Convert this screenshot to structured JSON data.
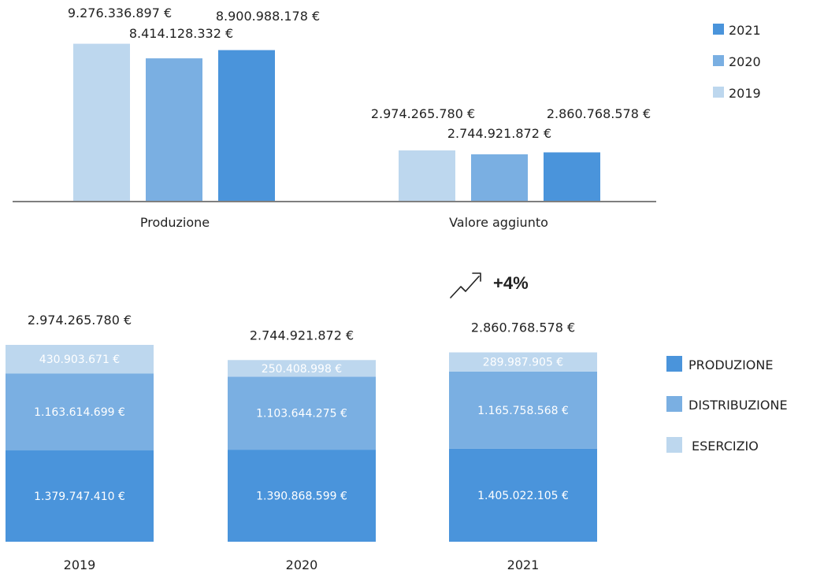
{
  "chart_data": [
    {
      "type": "bar",
      "categories": [
        "Produzione",
        "Valore aggiunto"
      ],
      "series": [
        {
          "name": "2019",
          "color": "#bdd7ee",
          "values": [
            9276336897,
            2974265780
          ],
          "labels": [
            "9.276.336.897 €",
            "2.974.265.780 €"
          ]
        },
        {
          "name": "2020",
          "color": "#7aafe2",
          "values": [
            8414128332,
            2744921872
          ],
          "labels": [
            "8.414.128.332 €",
            "2.744.921.872 €"
          ]
        },
        {
          "name": "2021",
          "color": "#4a94db",
          "values": [
            8900988178,
            2860768578
          ],
          "labels": [
            "8.900.988.178 €",
            "2.860.768.578 €"
          ]
        }
      ],
      "legend_order": [
        "2021",
        "2020",
        "2019"
      ],
      "legend_position": "top-right",
      "ylim": [
        0,
        10000000000
      ],
      "grid": false
    },
    {
      "type": "bar",
      "stacked": true,
      "categories": [
        "2019",
        "2020",
        "2021"
      ],
      "totals": [
        2974265780,
        2744921872,
        2860768578
      ],
      "total_labels": [
        "2.974.265.780 €",
        "2.744.921.872 €",
        "2.860.768.578 €"
      ],
      "series": [
        {
          "name": "PRODUZIONE",
          "color": "#4a94db",
          "values": [
            1379747410,
            1390868599,
            1405022105
          ],
          "labels": [
            "1.379.747.410 €",
            "1.390.868.599 €",
            "1.405.022.105 €"
          ]
        },
        {
          "name": "DISTRIBUZIONE",
          "color": "#7aafe2",
          "values": [
            1163614699,
            1103644275,
            1165758568
          ],
          "labels": [
            "1.163.614.699 €",
            "1.103.644.275 €",
            "1.165.758.568 €"
          ]
        },
        {
          "name": "ESERCIZIO",
          "color": "#bdd7ee",
          "values": [
            430903671,
            250408998,
            289987905
          ],
          "labels": [
            "430.903.671 €",
            "250.408.998 €",
            "289.987.905 €"
          ]
        }
      ],
      "legend_position": "right",
      "annotation": {
        "icon": "trend-up-icon",
        "text": "+4%"
      },
      "grid": false
    }
  ]
}
